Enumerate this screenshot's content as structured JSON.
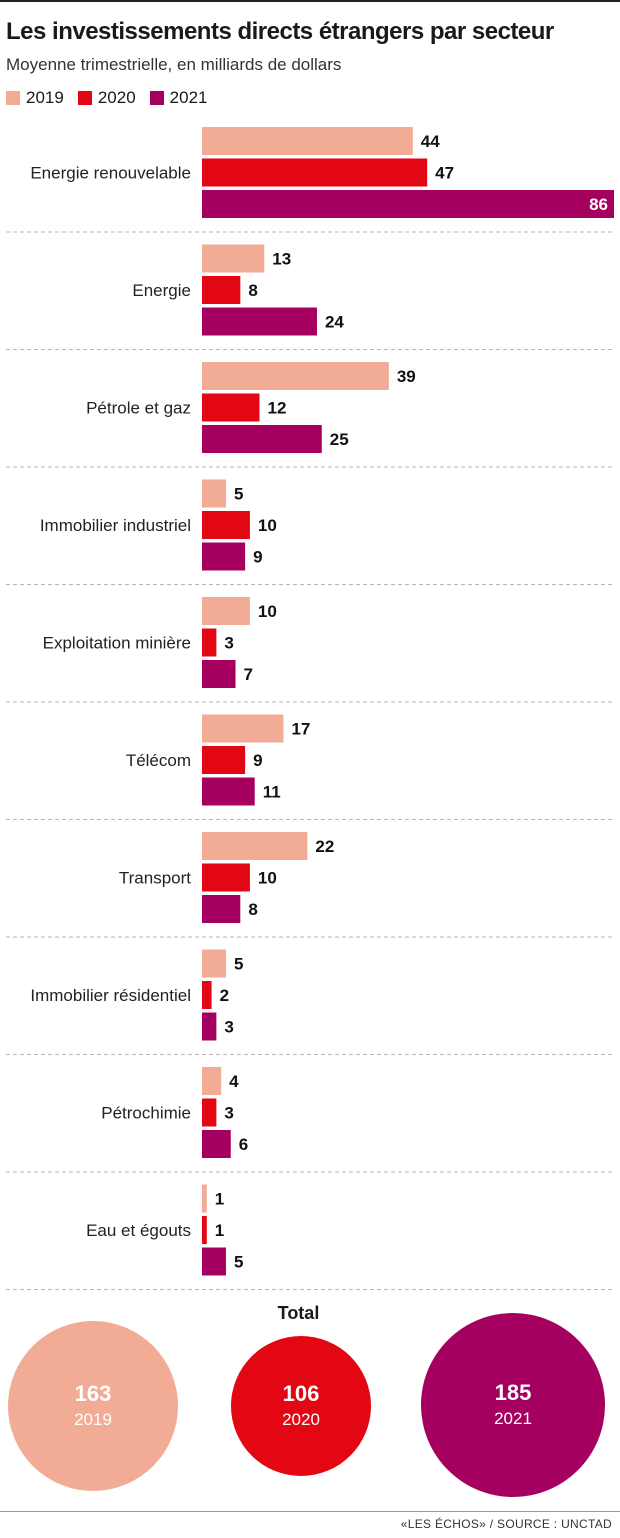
{
  "title": "Les investissements directs étrangers par secteur",
  "subtitle": "Moyenne trimestrielle, en milliards de dollars",
  "colors": {
    "2019": "#f2ab94",
    "2020": "#e30613",
    "2021": "#a50060"
  },
  "legend": [
    {
      "label": "2019",
      "color": "#f2ab94"
    },
    {
      "label": "2020",
      "color": "#e30613"
    },
    {
      "label": "2021",
      "color": "#a50060"
    }
  ],
  "chart_data": {
    "type": "bar",
    "orientation": "horizontal",
    "categories": [
      "Energie renouvelable",
      "Energie",
      "Pétrole et gaz",
      "Immobilier industriel",
      "Exploitation minière",
      "Télécom",
      "Transport",
      "Immobilier résidentiel",
      "Pétrochimie",
      "Eau et égouts"
    ],
    "series": [
      {
        "name": "2019",
        "color": "#f2ab94",
        "values": [
          44,
          13,
          39,
          5,
          10,
          17,
          22,
          5,
          4,
          1
        ]
      },
      {
        "name": "2020",
        "color": "#e30613",
        "values": [
          47,
          8,
          12,
          10,
          3,
          9,
          10,
          2,
          3,
          1
        ]
      },
      {
        "name": "2021",
        "color": "#a50060",
        "values": [
          86,
          24,
          25,
          9,
          7,
          11,
          8,
          3,
          6,
          5
        ]
      }
    ],
    "xlim": [
      0,
      86
    ],
    "legend": "top-left",
    "grid": false
  },
  "totals": {
    "title": "Total",
    "items": [
      {
        "value": "163",
        "year": "2019",
        "color": "#f2ab94"
      },
      {
        "value": "106",
        "year": "2020",
        "color": "#e30613"
      },
      {
        "value": "185",
        "year": "2021",
        "color": "#a50060"
      }
    ]
  },
  "source": "«LES ÉCHOS» / SOURCE : UNCTAD"
}
